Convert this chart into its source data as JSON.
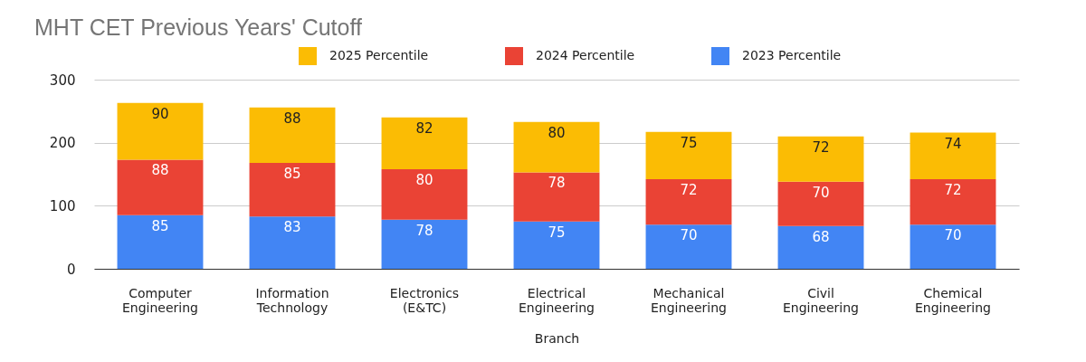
{
  "chart_data": {
    "type": "bar",
    "title": "MHT CET Previous Years' Cutoff",
    "xlabel": "Branch",
    "categories": [
      "Computer Engineering",
      "Information Technology",
      "Electronics (E&TC)",
      "Electrical Engineering",
      "Mechanical Engineering",
      "Civil Engineering",
      "Chemical Engineering"
    ],
    "series": [
      {
        "name": "2023 Percentile",
        "color": "#4285f4",
        "values": [
          85,
          83,
          78,
          75,
          70,
          68,
          70
        ]
      },
      {
        "name": "2024 Percentile",
        "color": "#ea4335",
        "values": [
          88,
          85,
          80,
          78,
          72,
          70,
          72
        ]
      },
      {
        "name": "2025 Percentile",
        "color": "#fbbc04",
        "values": [
          90,
          88,
          82,
          80,
          75,
          72,
          74
        ]
      }
    ],
    "stacked": true,
    "ylim": [
      0,
      300
    ],
    "yticks": [
      0,
      100,
      200,
      300
    ],
    "grid": "y",
    "data_labels": true,
    "legend": "top"
  }
}
